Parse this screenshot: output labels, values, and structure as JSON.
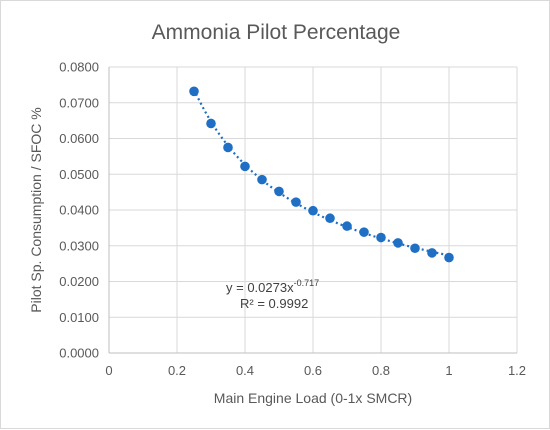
{
  "chart_data": {
    "type": "scatter",
    "title": "Ammonia Pilot Percentage",
    "xlabel": "Main Engine Load (0-1x SMCR)",
    "ylabel": "Pilot Sp. Consumption / SFOC %",
    "xlim": [
      0,
      1.2
    ],
    "ylim": [
      0,
      0.08
    ],
    "x_ticks": [
      "0",
      "0.2",
      "0.4",
      "0.6",
      "0.8",
      "1",
      "1.2"
    ],
    "y_ticks": [
      "0.0000",
      "0.0100",
      "0.0200",
      "0.0300",
      "0.0400",
      "0.0500",
      "0.0600",
      "0.0700",
      "0.0800"
    ],
    "grid": true,
    "series": [
      {
        "color": "#1f6fc5",
        "x": [
          0.25,
          0.3,
          0.35,
          0.4,
          0.45,
          0.5,
          0.55,
          0.6,
          0.65,
          0.7,
          0.75,
          0.8,
          0.85,
          0.9,
          0.95,
          1.0
        ],
        "y": [
          0.0732,
          0.0642,
          0.0575,
          0.0522,
          0.0485,
          0.0452,
          0.0422,
          0.0398,
          0.0377,
          0.0355,
          0.0338,
          0.0323,
          0.0308,
          0.0293,
          0.028,
          0.0267
        ]
      }
    ],
    "trendline": {
      "kind": "power",
      "a": 0.0273,
      "b": -0.717,
      "equation_prefix": "y = 0.0273x",
      "equation_exponent": "-0.717",
      "r2_text": "R² = 0.9992"
    }
  }
}
